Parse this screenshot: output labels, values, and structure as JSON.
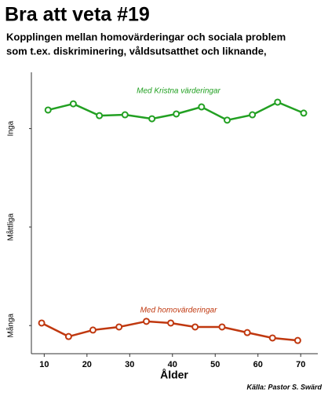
{
  "chart_data": {
    "type": "line",
    "title": "Bra att veta #19",
    "subtitle": [
      "Kopplingen mellan homovärderingar och sociala problem",
      "som t.ex. diskriminering, våldsutsatthet och liknande,"
    ],
    "x_label": "Ålder",
    "source": "Källa: Pastor S. Swärd",
    "xlim": [
      7,
      74
    ],
    "xticks": [
      10,
      20,
      30,
      40,
      50,
      60,
      70
    ],
    "ylim": [
      0,
      10
    ],
    "yticks": [
      {
        "value": 1,
        "label": "Många"
      },
      {
        "value": 4.5,
        "label": "Måttliga"
      },
      {
        "value": 8,
        "label": "Inga"
      }
    ],
    "grid": false,
    "series": [
      {
        "name": "Med Kristna värderingar",
        "color": "#22a022",
        "x": [
          10.9,
          16.8,
          22.9,
          28.9,
          35.2,
          40.9,
          46.8,
          52.8,
          58.7,
          64.6,
          70.7
        ],
        "values": [
          8.66,
          8.88,
          8.46,
          8.49,
          8.35,
          8.52,
          8.77,
          8.3,
          8.49,
          8.94,
          8.55
        ]
      },
      {
        "name": "Med homovärderingar",
        "color": "#c0380f",
        "x": [
          9.4,
          15.7,
          21.4,
          27.5,
          33.9,
          39.6,
          45.3,
          51.6,
          57.5,
          63.4,
          69.3
        ],
        "values": [
          1.09,
          0.61,
          0.84,
          0.95,
          1.15,
          1.09,
          0.95,
          0.95,
          0.75,
          0.56,
          0.47
        ]
      }
    ]
  }
}
